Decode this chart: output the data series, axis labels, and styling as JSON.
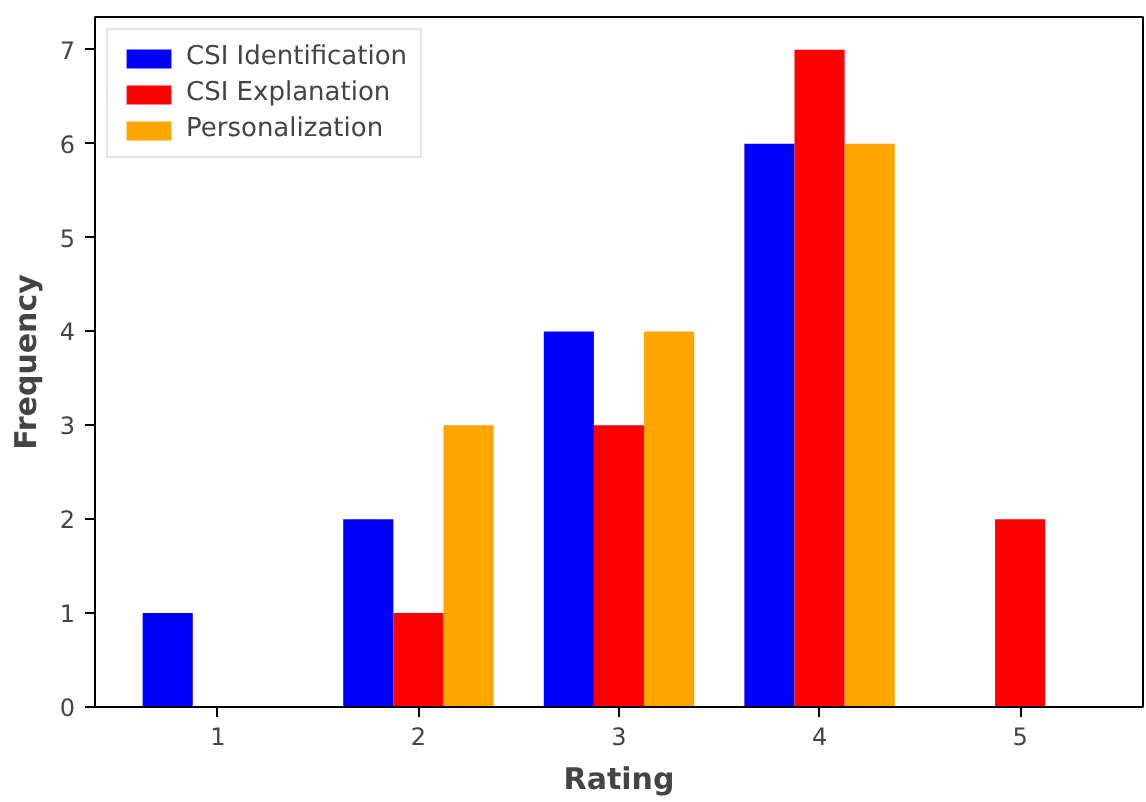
{
  "chart_data": {
    "type": "bar",
    "xlabel": "Rating",
    "ylabel": "Frequency",
    "x": [
      1,
      2,
      3,
      4,
      5
    ],
    "series": [
      {
        "name": "CSI Identification",
        "color": "#0000ff",
        "values": [
          1,
          2,
          4,
          6,
          0
        ]
      },
      {
        "name": "CSI Explanation",
        "color": "#ff0000",
        "values": [
          0,
          1,
          3,
          7,
          2
        ]
      },
      {
        "name": "Personalization",
        "color": "#ffa500",
        "values": [
          0,
          3,
          4,
          6,
          0
        ]
      }
    ],
    "xlim": [
      0.3875,
      5.6125
    ],
    "xticks": [
      1,
      2,
      3,
      4,
      5
    ],
    "ylim": [
      0,
      7.35
    ],
    "yticks": [
      0,
      1,
      2,
      3,
      4,
      5,
      6,
      7
    ],
    "grid": false,
    "legend": "top left"
  }
}
